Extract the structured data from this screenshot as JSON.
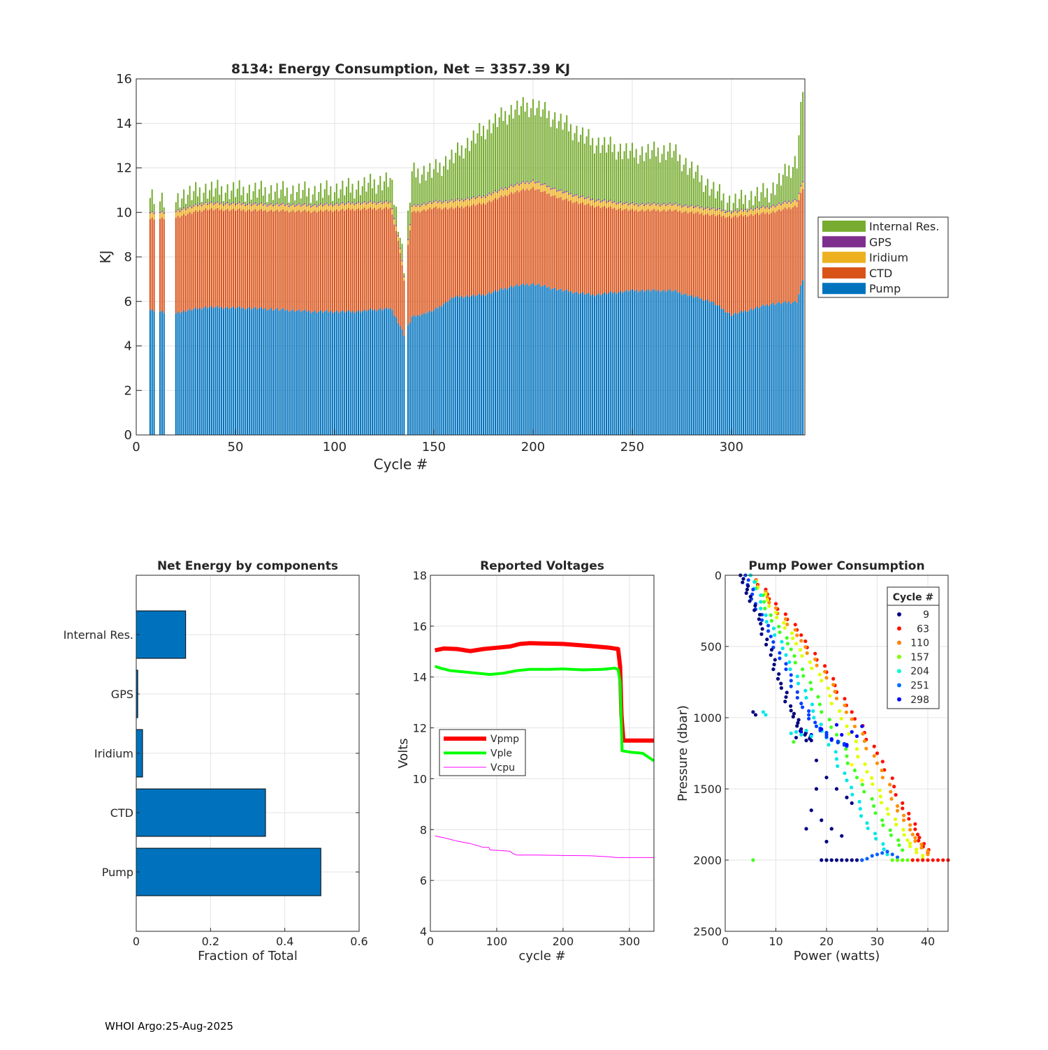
{
  "footer": "WHOI Argo:25-Aug-2025",
  "chart_data": [
    {
      "id": "energy",
      "type": "bar",
      "stacked": true,
      "title": "8134: Energy Consumption,  Net = 3357.39 KJ",
      "xlabel": "Cycle #",
      "ylabel": "KJ",
      "xlim": [
        0,
        337
      ],
      "ylim": [
        0,
        16
      ],
      "xticks": [
        0,
        50,
        100,
        150,
        200,
        250,
        300
      ],
      "yticks": [
        0,
        2,
        4,
        6,
        8,
        10,
        12,
        14,
        16
      ],
      "legend_position": "right",
      "series_order": [
        "Pump",
        "CTD",
        "Iridium",
        "GPS",
        "Internal Res."
      ],
      "legend_order": [
        "Internal Res.",
        "GPS",
        "Iridium",
        "CTD",
        "Pump"
      ],
      "colors": {
        "Pump": "#0072BD",
        "CTD": "#D95319",
        "Iridium": "#EDB120",
        "GPS": "#7E2F8E",
        "Internal Res.": "#77AC30"
      },
      "missing_cycles": [
        10,
        11,
        15,
        16,
        17,
        18,
        19,
        136
      ],
      "profile_points": {
        "cycle": [
          7,
          20,
          35,
          60,
          90,
          110,
          128,
          132,
          135,
          139,
          150,
          160,
          175,
          190,
          200,
          215,
          230,
          250,
          270,
          290,
          300,
          320,
          333,
          336
        ],
        "pump": [
          5.6,
          5.5,
          5.75,
          5.7,
          5.55,
          5.55,
          5.7,
          5.1,
          4.5,
          5.3,
          5.6,
          6.2,
          6.3,
          6.7,
          6.8,
          6.5,
          6.3,
          6.5,
          6.5,
          6.0,
          5.4,
          5.9,
          6.0,
          7.0
        ],
        "ctd": [
          4.1,
          4.3,
          4.4,
          4.4,
          4.5,
          4.6,
          4.5,
          3.7,
          2.5,
          4.7,
          4.6,
          4.0,
          4.1,
          4.2,
          4.3,
          4.1,
          4.0,
          3.6,
          3.6,
          3.9,
          4.4,
          4.1,
          4.3,
          4.1
        ],
        "iridium": [
          0.25,
          0.25,
          0.25,
          0.25,
          0.25,
          0.25,
          0.25,
          0.2,
          0.15,
          0.25,
          0.25,
          0.3,
          0.3,
          0.3,
          0.3,
          0.3,
          0.25,
          0.25,
          0.25,
          0.25,
          0.2,
          0.25,
          0.25,
          0.3
        ],
        "gps": [
          0.05,
          0.05,
          0.05,
          0.05,
          0.05,
          0.05,
          0.05,
          0.05,
          0.05,
          0.05,
          0.05,
          0.05,
          0.05,
          0.05,
          0.05,
          0.05,
          0.05,
          0.05,
          0.05,
          0.05,
          0.05,
          0.05,
          0.05,
          0.05
        ],
        "internal_res": [
          0.6,
          0.6,
          0.6,
          0.6,
          0.6,
          0.7,
          1.0,
          0.6,
          0.5,
          1.5,
          1.4,
          2.0,
          3.0,
          3.4,
          3.4,
          3.1,
          2.6,
          2.3,
          2.4,
          0.9,
          0.4,
          0.7,
          1.8,
          4.3
        ]
      }
    },
    {
      "id": "components",
      "type": "bar",
      "orientation": "horizontal",
      "title": "Net Energy by components",
      "xlabel": "Fraction of Total",
      "categories": [
        "Internal Res.",
        "GPS",
        "Iridium",
        "CTD",
        "Pump"
      ],
      "values": [
        0.133,
        0.004,
        0.017,
        0.348,
        0.497
      ],
      "xlim": [
        0,
        0.6
      ],
      "xticks": [
        0,
        0.2,
        0.4,
        0.6
      ],
      "color": "#0072BD"
    },
    {
      "id": "voltages",
      "type": "line",
      "title": "Reported Voltages",
      "xlabel": "cycle #",
      "ylabel": "Volts",
      "xlim": [
        0,
        337
      ],
      "ylim": [
        4,
        18
      ],
      "xticks": [
        0,
        100,
        200,
        300
      ],
      "yticks": [
        4,
        6,
        8,
        10,
        12,
        14,
        16,
        18
      ],
      "legend_position": "west",
      "series": [
        {
          "name": "Vpmp",
          "color": "#FF0000",
          "width": 6,
          "x": [
            7,
            20,
            40,
            60,
            80,
            100,
            120,
            135,
            150,
            200,
            240,
            270,
            283,
            286,
            288,
            291,
            337
          ],
          "y": [
            15.05,
            15.12,
            15.1,
            15.02,
            15.1,
            15.15,
            15.2,
            15.3,
            15.33,
            15.3,
            15.22,
            15.15,
            15.1,
            14.4,
            12.5,
            11.5,
            11.5
          ]
        },
        {
          "name": "Vple",
          "color": "#00FF00",
          "width": 4,
          "x": [
            7,
            15,
            30,
            50,
            70,
            90,
            110,
            130,
            150,
            180,
            200,
            230,
            260,
            278,
            283,
            286,
            289,
            300,
            320,
            337
          ],
          "y": [
            14.42,
            14.35,
            14.25,
            14.2,
            14.15,
            14.1,
            14.15,
            14.25,
            14.3,
            14.3,
            14.32,
            14.28,
            14.3,
            14.35,
            14.3,
            13.8,
            11.1,
            11.05,
            11.0,
            10.7
          ]
        },
        {
          "name": "Vcpu",
          "color": "#FF00FF",
          "width": 1,
          "x": [
            7,
            20,
            40,
            60,
            80,
            88,
            90,
            120,
            125,
            130,
            160,
            200,
            240,
            270,
            280,
            300,
            337
          ],
          "y": [
            7.75,
            7.68,
            7.55,
            7.45,
            7.3,
            7.3,
            7.2,
            7.15,
            7.05,
            7.0,
            7.0,
            6.98,
            6.97,
            6.93,
            6.9,
            6.9,
            6.9
          ]
        }
      ]
    },
    {
      "id": "pump_power",
      "type": "scatter",
      "title": "Pump Power Consumption",
      "xlabel": "Power (watts)",
      "ylabel": "Pressure (dbar)",
      "xlim": [
        0,
        44
      ],
      "ylim": [
        0,
        2500
      ],
      "y_reversed": true,
      "xticks": [
        0,
        10,
        20,
        30,
        40
      ],
      "yticks": [
        0,
        500,
        1000,
        1500,
        2000,
        2500
      ],
      "legend_title": "Cycle #",
      "legend_position": "top-right",
      "legend": [
        {
          "label": "9",
          "color": "#000080"
        },
        {
          "label": "63",
          "color": "#FF1000"
        },
        {
          "label": "110",
          "color": "#FF8000"
        },
        {
          "label": "157",
          "color": "#80FF00"
        },
        {
          "label": "204",
          "color": "#00FFD0"
        },
        {
          "label": "251",
          "color": "#0070FF"
        },
        {
          "label": "298",
          "color": "#0000FF"
        }
      ],
      "series": [
        {
          "name": "diag_red",
          "color": "#FF1000",
          "x": [
            5,
            10,
            15,
            20,
            25,
            30,
            35,
            38,
            40
          ],
          "y": [
            0,
            200,
            420,
            680,
            960,
            1250,
            1600,
            1820,
            1950
          ]
        },
        {
          "name": "diag_orange",
          "color": "#FF9000",
          "x": [
            5,
            10,
            15,
            20,
            25,
            30,
            34,
            37,
            40
          ],
          "y": [
            0,
            230,
            460,
            720,
            1010,
            1320,
            1620,
            1820,
            1960
          ]
        },
        {
          "name": "diag_yellow",
          "color": "#E0FF00",
          "x": [
            5,
            10,
            14,
            19,
            24,
            28,
            32,
            36,
            39
          ],
          "y": [
            0,
            260,
            480,
            740,
            1060,
            1380,
            1640,
            1860,
            1990
          ]
        },
        {
          "name": "diag_green",
          "color": "#40FF20",
          "x": [
            5,
            9,
            13,
            17,
            22,
            26,
            31,
            35
          ],
          "y": [
            0,
            280,
            520,
            800,
            1120,
            1420,
            1720,
            1930
          ]
        },
        {
          "name": "diag_cyan",
          "color": "#00E8E8",
          "x": [
            5,
            8,
            12,
            16,
            20,
            24,
            28,
            32
          ],
          "y": [
            0,
            280,
            560,
            860,
            1140,
            1440,
            1740,
            1960
          ]
        },
        {
          "name": "diag_blue",
          "color": "#0040FF",
          "x": [
            4,
            6,
            9,
            12,
            15,
            18,
            21,
            24
          ],
          "y": [
            0,
            200,
            430,
            660,
            900,
            1060,
            1150,
            1200
          ]
        },
        {
          "name": "diag_navy",
          "color": "#000080",
          "x": [
            3,
            5,
            7,
            9,
            11,
            13,
            15,
            17
          ],
          "y": [
            0,
            150,
            340,
            560,
            760,
            950,
            1080,
            1160
          ]
        },
        {
          "name": "navy_scatter",
          "color": "#000080",
          "x": [
            14,
            16,
            18,
            20,
            22,
            24,
            25,
            19,
            21,
            23,
            20,
            18,
            17,
            16
          ],
          "y": [
            1140,
            1160,
            1300,
            1420,
            1500,
            1560,
            1600,
            1720,
            1780,
            1830,
            1870,
            1500,
            1650,
            1780
          ]
        },
        {
          "name": "blue_cluster",
          "color": "#0000FF",
          "x": [
            15,
            17,
            19,
            21,
            23,
            25,
            27,
            22,
            26,
            24
          ],
          "y": [
            1100,
            1120,
            1080,
            1150,
            1120,
            1100,
            1060,
            1050,
            1130,
            1190
          ]
        },
        {
          "name": "cyan_cluster",
          "color": "#00E8E8",
          "x": [
            13,
            14,
            15,
            16,
            17
          ],
          "y": [
            1110,
            1100,
            1120,
            1090,
            1130
          ]
        },
        {
          "name": "bottom_navy",
          "color": "#000080",
          "x": [
            19,
            20,
            21,
            22,
            23,
            24,
            25,
            26,
            27
          ],
          "y": [
            2000,
            2000,
            2000,
            2000,
            2000,
            2000,
            2000,
            2000,
            2000
          ]
        },
        {
          "name": "bottom_blue",
          "color": "#0060FF",
          "x": [
            27,
            28,
            29,
            30,
            31,
            32,
            33,
            34,
            35
          ],
          "y": [
            2000,
            1990,
            1970,
            1960,
            1950,
            1940,
            1960,
            1980,
            2000
          ]
        },
        {
          "name": "bottom_green",
          "color": "#60FF00",
          "x": [
            33,
            34,
            35,
            36,
            37
          ],
          "y": [
            2000,
            2000,
            2000,
            2000,
            2000
          ]
        },
        {
          "name": "bottom_red",
          "color": "#FF1000",
          "x": [
            37,
            38,
            39,
            40,
            41,
            42,
            43,
            44
          ],
          "y": [
            2000,
            2000,
            2000,
            2000,
            2000,
            2000,
            2000,
            2000
          ]
        },
        {
          "name": "outlier_navy",
          "color": "#000080",
          "x": [
            5.5,
            6
          ],
          "y": [
            960,
            980
          ]
        },
        {
          "name": "outlier_cyan",
          "color": "#00E8E8",
          "x": [
            7.5,
            8
          ],
          "y": [
            960,
            980
          ]
        },
        {
          "name": "outlier_green",
          "color": "#40FF20",
          "x": [
            5.5,
            13.5
          ],
          "y": [
            2000,
            1170
          ]
        },
        {
          "name": "outlier_yellow",
          "color": "#FFFF00",
          "x": [
            25,
            27
          ],
          "y": [
            1330,
            1440
          ]
        }
      ]
    }
  ]
}
